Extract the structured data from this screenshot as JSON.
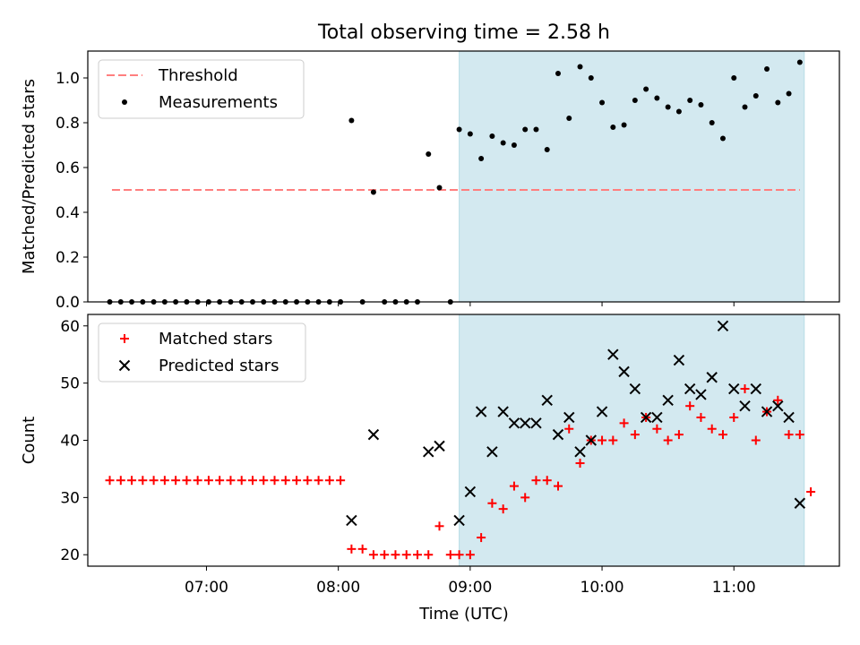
{
  "figure": {
    "title": "Total observing time = 2.58 h",
    "xlabel": "Time (UTC)",
    "xticks": [
      "07:00",
      "08:00",
      "09:00",
      "10:00",
      "11:00"
    ],
    "highlight_color": "#d3e9f0"
  },
  "chart_data": [
    {
      "type": "scatter",
      "ylabel": "Matched/Predicted stars",
      "ylim": [
        0,
        1.12
      ],
      "yticks": [
        "0.0",
        "0.2",
        "0.4",
        "0.6",
        "0.8",
        "1.0"
      ],
      "xlim": [
        "06:06",
        "11:48"
      ],
      "highlight": {
        "from": "08:55",
        "to": "11:32"
      },
      "legend": {
        "position": "top-left",
        "entries": [
          "Threshold",
          "Measurements"
        ]
      },
      "series": [
        {
          "name": "Threshold",
          "kind": "line",
          "color": "#ff7f7f",
          "y": 0.5,
          "x_from": "06:17",
          "x_to": "11:30"
        },
        {
          "name": "Measurements",
          "kind": "scatter",
          "color": "#000000",
          "x": [
            "06:16",
            "06:21",
            "06:26",
            "06:31",
            "06:36",
            "06:41",
            "06:46",
            "06:51",
            "06:56",
            "07:01",
            "07:06",
            "07:11",
            "07:16",
            "07:21",
            "07:26",
            "07:31",
            "07:36",
            "07:41",
            "07:46",
            "07:51",
            "07:56",
            "08:01",
            "08:06",
            "08:11",
            "08:16",
            "08:21",
            "08:26",
            "08:31",
            "08:36",
            "08:41",
            "08:46",
            "08:51",
            "08:55",
            "09:00",
            "09:05",
            "09:10",
            "09:15",
            "09:20",
            "09:25",
            "09:30",
            "09:35",
            "09:40",
            "09:45",
            "09:50",
            "09:55",
            "10:00",
            "10:05",
            "10:10",
            "10:15",
            "10:20",
            "10:25",
            "10:30",
            "10:35",
            "10:40",
            "10:45",
            "10:50",
            "10:55",
            "11:00",
            "11:05",
            "11:10",
            "11:15",
            "11:20",
            "11:25",
            "11:30"
          ],
          "y": [
            0,
            0,
            0,
            0,
            0,
            0,
            0,
            0,
            0,
            0,
            0,
            0,
            0,
            0,
            0,
            0,
            0,
            0,
            0,
            0,
            0,
            0,
            0.81,
            0,
            0.49,
            0,
            0,
            0,
            0,
            0.66,
            0.51,
            0,
            0.77,
            0.75,
            0.64,
            0.74,
            0.71,
            0.7,
            0.77,
            0.77,
            0.68,
            1.02,
            0.82,
            1.05,
            1.0,
            0.89,
            0.78,
            0.79,
            0.9,
            0.95,
            0.91,
            0.87,
            0.85,
            0.9,
            0.88,
            0.8,
            0.73,
            1.0,
            0.87,
            0.92,
            1.04,
            0.89,
            0.93,
            1.07
          ]
        }
      ]
    },
    {
      "type": "scatter",
      "ylabel": "Count",
      "ylim": [
        18,
        62
      ],
      "yticks": [
        "20",
        "30",
        "40",
        "50",
        "60"
      ],
      "xlim": [
        "06:06",
        "11:48"
      ],
      "highlight": {
        "from": "08:55",
        "to": "11:32"
      },
      "legend": {
        "position": "top-left",
        "entries": [
          "Matched stars",
          "Predicted stars"
        ]
      },
      "x": [
        "06:16",
        "06:21",
        "06:26",
        "06:31",
        "06:36",
        "06:41",
        "06:46",
        "06:51",
        "06:56",
        "07:01",
        "07:06",
        "07:11",
        "07:16",
        "07:21",
        "07:26",
        "07:31",
        "07:36",
        "07:41",
        "07:46",
        "07:51",
        "07:56",
        "08:01",
        "08:06",
        "08:11",
        "08:16",
        "08:21",
        "08:26",
        "08:31",
        "08:36",
        "08:41",
        "08:46",
        "08:51",
        "08:55",
        "09:00",
        "09:05",
        "09:10",
        "09:15",
        "09:20",
        "09:25",
        "09:30",
        "09:35",
        "09:40",
        "09:45",
        "09:50",
        "09:55",
        "10:00",
        "10:05",
        "10:10",
        "10:15",
        "10:20",
        "10:25",
        "10:30",
        "10:35",
        "10:40",
        "10:45",
        "10:50",
        "10:55",
        "11:00",
        "11:05",
        "11:10",
        "11:15",
        "11:20",
        "11:25",
        "11:30",
        "11:35"
      ],
      "series": [
        {
          "name": "Matched stars",
          "marker": "plus",
          "color": "#ff0000",
          "y": [
            33,
            33,
            33,
            33,
            33,
            33,
            33,
            33,
            33,
            33,
            33,
            33,
            33,
            33,
            33,
            33,
            33,
            33,
            33,
            33,
            33,
            33,
            21,
            21,
            20,
            20,
            20,
            20,
            20,
            20,
            25,
            20,
            20,
            20,
            23,
            29,
            28,
            32,
            30,
            33,
            33,
            32,
            42,
            36,
            40,
            40,
            40,
            43,
            41,
            44,
            42,
            40,
            41,
            46,
            44,
            42,
            41,
            44,
            49,
            40,
            45,
            47,
            41,
            41,
            31
          ]
        },
        {
          "name": "Predicted stars",
          "marker": "x",
          "color": "#000000",
          "x": [
            "08:06",
            "08:16",
            "08:41",
            "08:46",
            "08:55",
            "09:00",
            "09:05",
            "09:10",
            "09:15",
            "09:20",
            "09:25",
            "09:30",
            "09:35",
            "09:40",
            "09:45",
            "09:50",
            "09:55",
            "10:00",
            "10:05",
            "10:10",
            "10:15",
            "10:20",
            "10:25",
            "10:30",
            "10:35",
            "10:40",
            "10:45",
            "10:50",
            "10:55",
            "11:00",
            "11:05",
            "11:10",
            "11:15",
            "11:20",
            "11:25",
            "11:30",
            "11:35"
          ],
          "y": [
            26,
            41,
            38,
            39,
            26,
            31,
            45,
            38,
            45,
            43,
            43,
            43,
            47,
            41,
            44,
            38,
            40,
            45,
            55,
            52,
            49,
            44,
            44,
            47,
            54,
            49,
            48,
            51,
            60,
            49,
            46,
            49,
            45,
            46,
            44,
            29,
            null
          ]
        }
      ]
    }
  ]
}
